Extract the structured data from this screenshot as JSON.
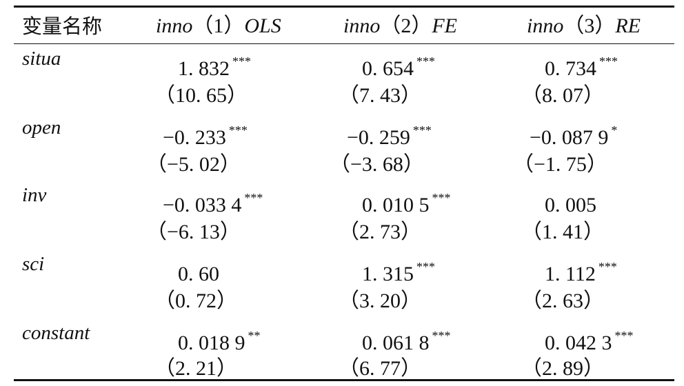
{
  "header": {
    "var_label": "变量名称",
    "col1_model": "inno",
    "col1_num": "（1）",
    "col1_method": "OLS",
    "col2_model": "inno",
    "col2_num": "（2）",
    "col2_method": "FE",
    "col3_model": "inno",
    "col3_num": "（3）",
    "col3_method": "RE"
  },
  "rows": [
    {
      "name": "situa",
      "c1": "1. 832",
      "c1_star": "***",
      "c2": "0. 654",
      "c2_star": "***",
      "c3": "0. 734",
      "c3_star": "***",
      "t1": "（10. 65）",
      "t2": "（7. 43）",
      "t3": "（8. 07）"
    },
    {
      "name": "open",
      "c1": "−0. 233",
      "c1_star": "***",
      "c2": "−0. 259",
      "c2_star": "***",
      "c3": "−0. 087 9",
      "c3_star": "*",
      "t1": "（−5. 02）",
      "t2": "（−3. 68）",
      "t3": "（−1. 75）"
    },
    {
      "name": "inv",
      "c1": "−0. 033 4",
      "c1_star": "***",
      "c2": "0. 010 5",
      "c2_star": "***",
      "c3": "0. 005",
      "c3_star": "",
      "t1": "（−6. 13）",
      "t2": "（2. 73）",
      "t3": "（1. 41）"
    },
    {
      "name": "sci",
      "c1": "0. 60",
      "c1_star": "",
      "c2": "1. 315",
      "c2_star": "***",
      "c3": "1. 112",
      "c3_star": "***",
      "t1": "（0. 72）",
      "t2": "（3. 20）",
      "t3": "（2. 63）"
    },
    {
      "name": "constant",
      "c1": "0. 018 9",
      "c1_star": "**",
      "c2": "0. 061 8",
      "c2_star": "***",
      "c3": "0. 042 3",
      "c3_star": "***",
      "t1": "（2. 21）",
      "t2": "（6. 77）",
      "t3": "（2. 89）"
    }
  ]
}
